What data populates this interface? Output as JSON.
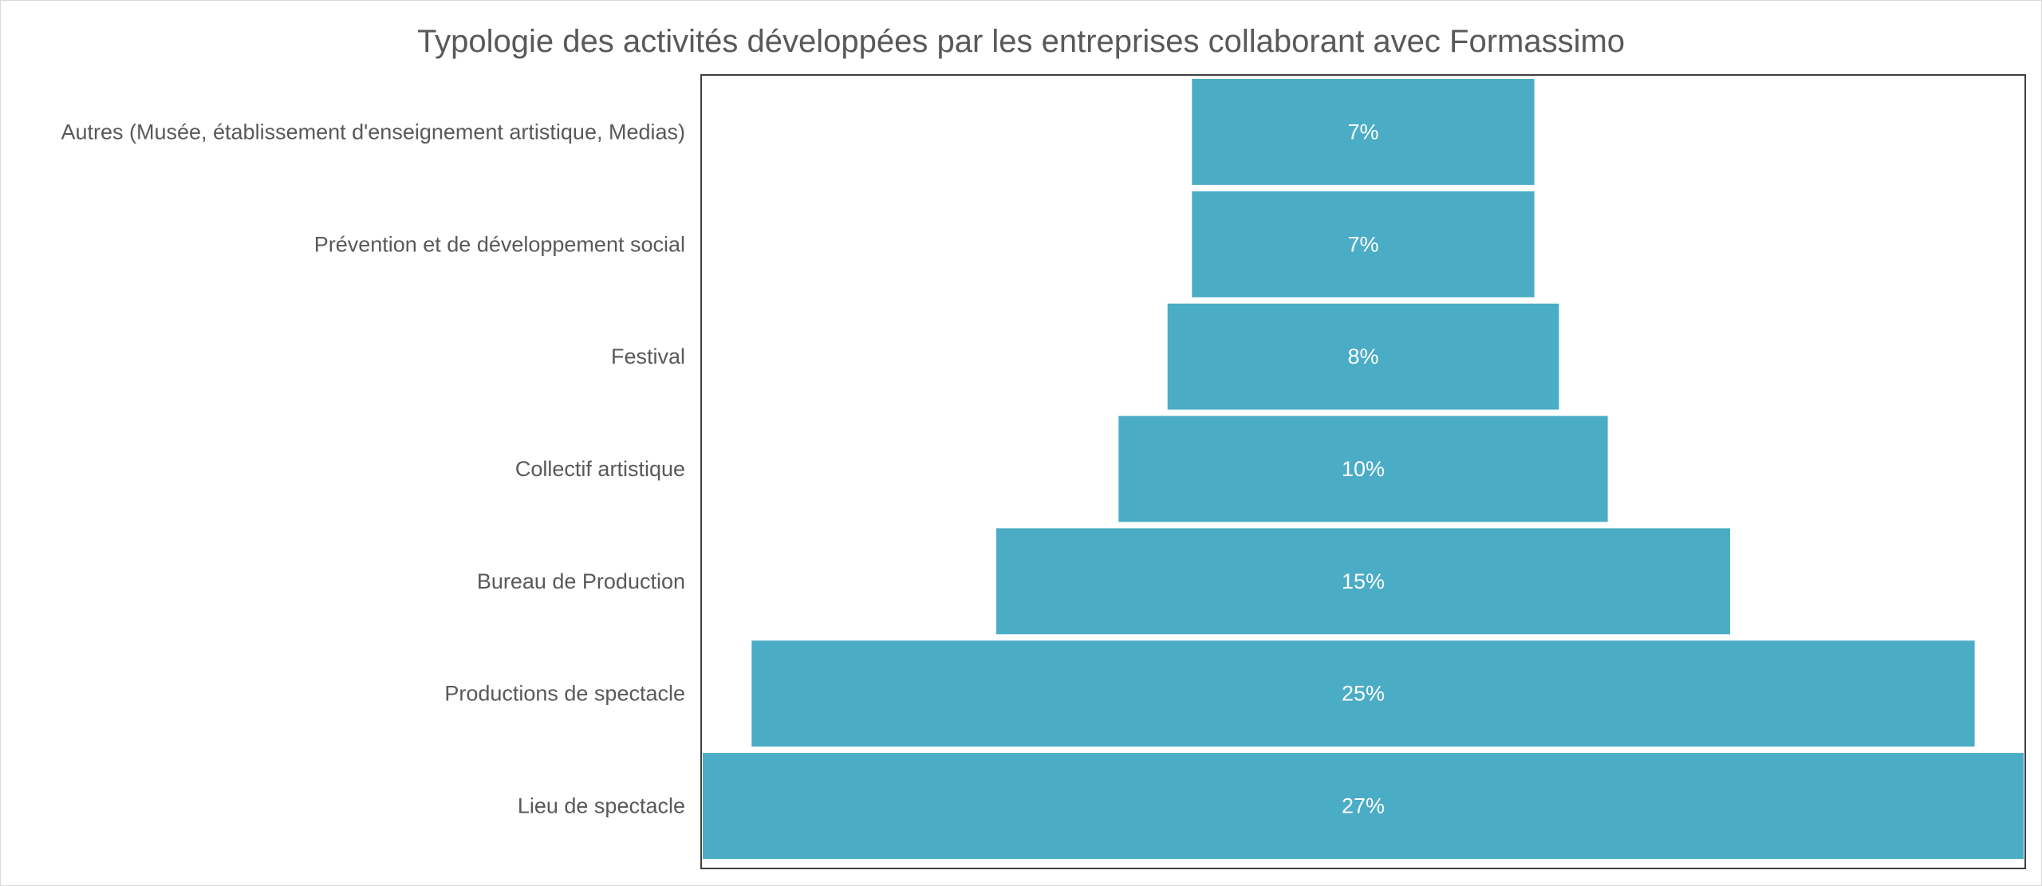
{
  "chart_data": {
    "type": "bar",
    "subtype": "funnel",
    "title": "Typologie des activités développées par les entreprises collaborant avec Formassimo",
    "categories": [
      "Autres (Musée, établissement d'enseignement artistique, Medias)",
      "Prévention et de développement social",
      "Festival",
      "Collectif artistique",
      "Bureau de Production",
      "Productions de spectacle",
      "Lieu de spectacle"
    ],
    "values": [
      7,
      7,
      8,
      10,
      15,
      25,
      27
    ],
    "data_labels": [
      "7%",
      "7%",
      "8%",
      "10%",
      "15%",
      "25%",
      "27%"
    ],
    "unit": "%",
    "xlim": [
      0,
      27
    ],
    "grid": false,
    "legend": "none",
    "colors": {
      "bar": "#4BACC6",
      "title": "#595959",
      "category_text": "#595959",
      "data_label_text": "#FFFFFF",
      "plot_border": "#404040"
    }
  }
}
